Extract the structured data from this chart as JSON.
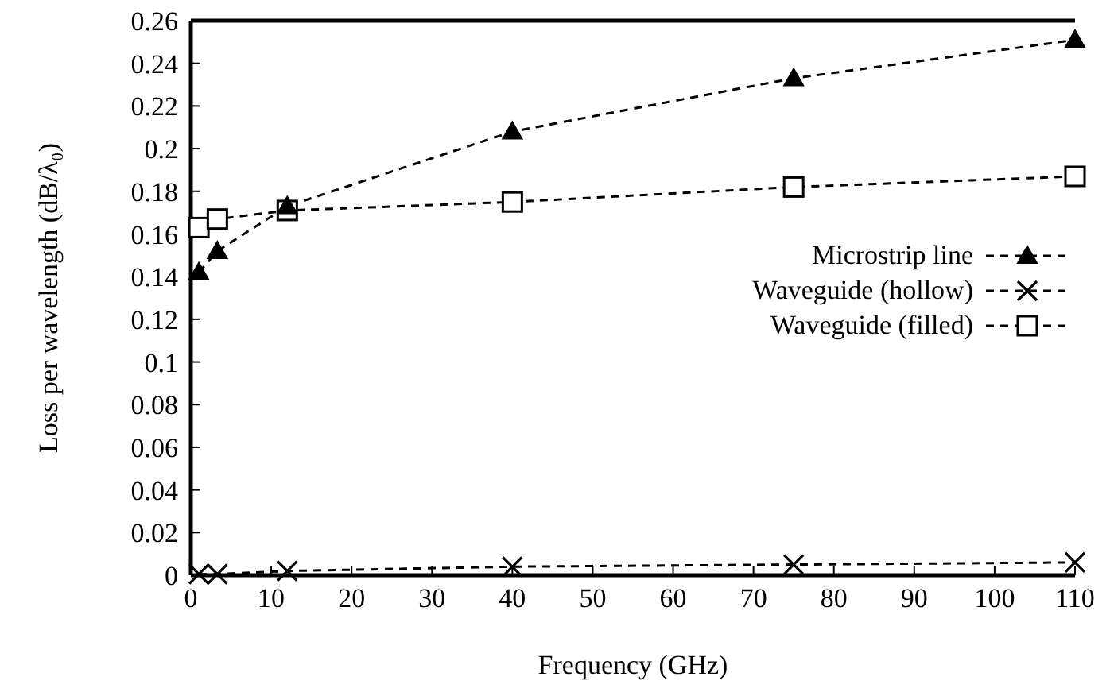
{
  "chart_data": {
    "type": "line",
    "xlabel": "Frequency (GHz)",
    "ylabel": "Loss per wavelength (dB/λ₀)",
    "xlim": [
      0,
      110
    ],
    "xticks": [
      0,
      10,
      20,
      30,
      40,
      50,
      60,
      70,
      80,
      90,
      100,
      110
    ],
    "ylim": [
      0,
      0.26
    ],
    "yticks": [
      0,
      0.02,
      0.04,
      0.06,
      0.08,
      0.1,
      0.12,
      0.14,
      0.16,
      0.18,
      0.2,
      0.22,
      0.24,
      0.26
    ],
    "x": [
      1,
      3.3,
      12,
      40,
      75,
      110
    ],
    "legend": "right",
    "line_style": "dashed",
    "grid": false,
    "series": [
      {
        "name": "Microstrip line",
        "color": "#000000",
        "marker": "triangle",
        "values": [
          0.142,
          0.152,
          0.173,
          0.208,
          0.233,
          0.251
        ]
      },
      {
        "name": "Waveguide (hollow)",
        "color": "#000000",
        "marker": "cross",
        "values": [
          0.0005,
          0.0005,
          0.002,
          0.004,
          0.005,
          0.006
        ]
      },
      {
        "name": "Waveguide (filled)",
        "color": "#000000",
        "marker": "square",
        "values": [
          0.163,
          0.167,
          0.171,
          0.175,
          0.182,
          0.187
        ]
      }
    ]
  }
}
